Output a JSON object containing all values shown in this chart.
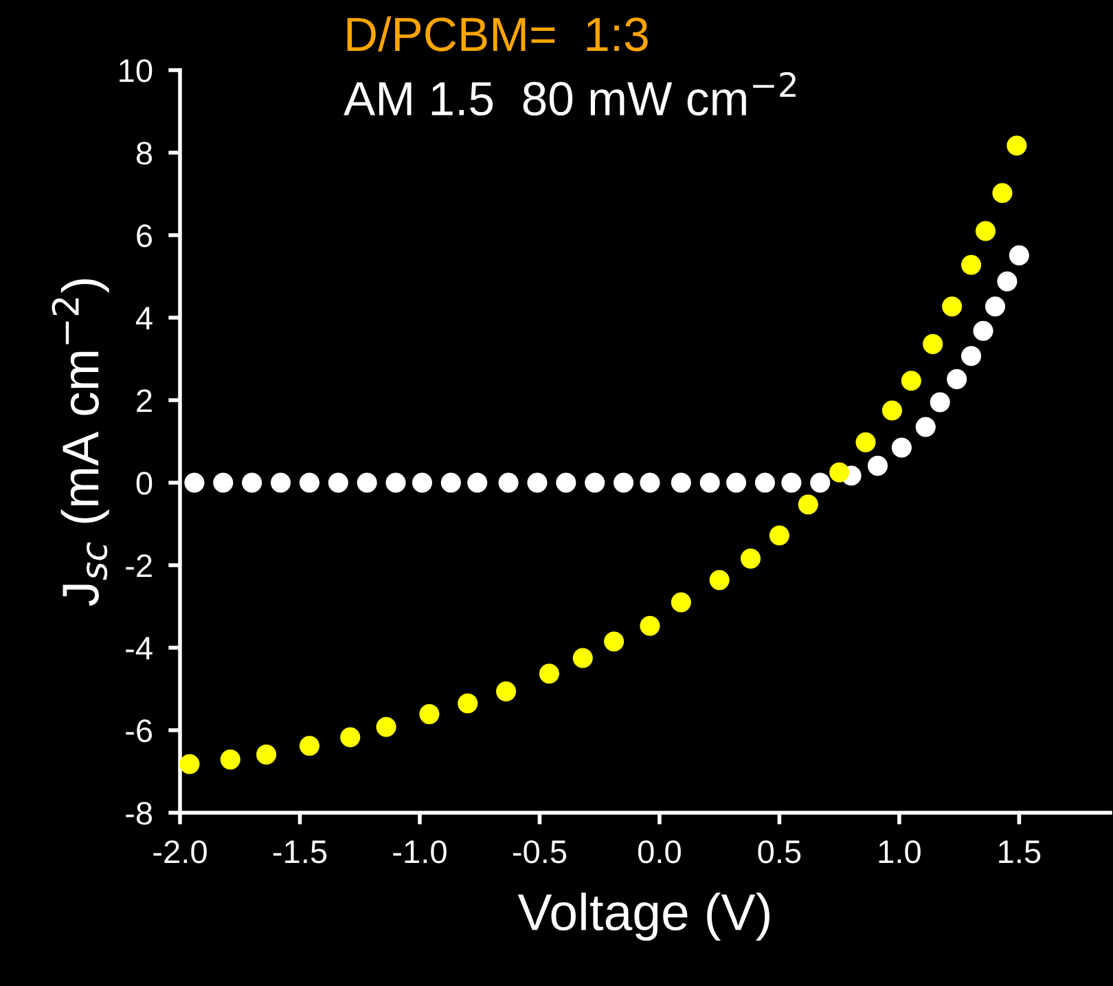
{
  "chart_data": {
    "type": "scatter",
    "title": "D/PCBM=  1:3",
    "subtitle": "AM 1.5  80 mW cm$^{−2}$",
    "xlabel": "Voltage (V)",
    "ylabel": "J$_{sc}$ (mA cm$^{−2}$)",
    "series": [
      {
        "color": "#ffffff",
        "x": [
          -1.94,
          -1.82,
          -1.7,
          -1.58,
          -1.46,
          -1.34,
          -1.22,
          -1.1,
          -0.99,
          -0.87,
          -0.76,
          -0.63,
          -0.51,
          -0.39,
          -0.27,
          -0.15,
          -0.04,
          0.09,
          0.21,
          0.32,
          0.44,
          0.55,
          0.67,
          0.8,
          0.91,
          1.01,
          1.11,
          1.17,
          1.24,
          1.3,
          1.35,
          1.4,
          1.45,
          1.5
        ],
        "values": [
          0,
          0,
          0,
          0,
          0,
          0,
          0,
          0,
          0,
          0,
          0,
          0,
          0,
          0,
          0,
          0,
          0,
          0,
          0,
          0,
          0,
          0,
          0,
          0.17,
          0.41,
          0.85,
          1.35,
          1.95,
          2.51,
          3.07,
          3.68,
          4.27,
          4.88,
          5.51
        ]
      },
      {
        "color": "#ffff00",
        "x": [
          -1.96,
          -1.79,
          -1.64,
          -1.46,
          -1.29,
          -1.14,
          -0.96,
          -0.8,
          -0.64,
          -0.46,
          -0.32,
          -0.19,
          -0.04,
          0.09,
          0.25,
          0.38,
          0.5,
          0.62,
          0.75,
          0.86,
          0.97,
          1.05,
          1.14,
          1.22,
          1.3,
          1.36,
          1.43,
          1.49
        ],
        "values": [
          -6.82,
          -6.71,
          -6.59,
          -6.38,
          -6.17,
          -5.92,
          -5.61,
          -5.35,
          -5.06,
          -4.63,
          -4.25,
          -3.85,
          -3.47,
          -2.9,
          -2.36,
          -1.84,
          -1.28,
          -0.53,
          0.25,
          0.98,
          1.75,
          2.47,
          3.36,
          4.27,
          5.28,
          6.1,
          7.02,
          8.17
        ]
      }
    ],
    "xlim": [
      -2.0,
      1.88
    ],
    "ylim": [
      -8,
      10
    ],
    "xticks": [
      {
        "value": -2.0,
        "label": "-2.0"
      },
      {
        "value": -1.5,
        "label": "-1.5"
      },
      {
        "value": -1.0,
        "label": "-1.0"
      },
      {
        "value": -0.5,
        "label": "-0.5"
      },
      {
        "value": 0.0,
        "label": "0.0"
      },
      {
        "value": 0.5,
        "label": "0.5"
      },
      {
        "value": 1.0,
        "label": "1.0"
      },
      {
        "value": 1.5,
        "label": "1.5"
      }
    ],
    "yticks": [
      -8,
      -6,
      -4,
      -2,
      0,
      2,
      4,
      6,
      8,
      10
    ],
    "grid": false,
    "legend": false,
    "marker": "circle"
  }
}
